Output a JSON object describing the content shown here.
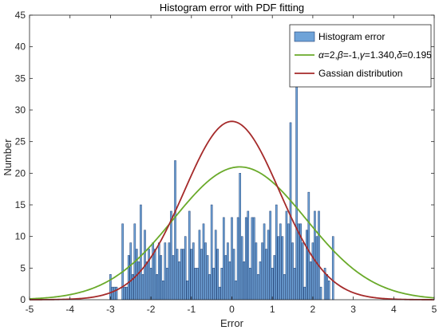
{
  "chart_data": {
    "type": "bar",
    "title": "Histogram error with PDF fitting",
    "xlabel": "Error",
    "ylabel": "Number",
    "xlim": [
      -5,
      5
    ],
    "ylim": [
      0,
      45
    ],
    "xticks": [
      -5,
      -4,
      -3,
      -2,
      -1,
      0,
      1,
      2,
      3,
      4,
      5
    ],
    "yticks": [
      0,
      5,
      10,
      15,
      20,
      25,
      30,
      35,
      40,
      45
    ],
    "grid": false,
    "legend_position": "top-right",
    "histogram": {
      "name": "Histogram error",
      "color": "#6fa3d8",
      "edge_color": "#1f3f73",
      "bin_width": 0.05,
      "x": [
        -3.0,
        -2.95,
        -2.9,
        -2.85,
        -2.8,
        -2.75,
        -2.7,
        -2.65,
        -2.6,
        -2.55,
        -2.5,
        -2.45,
        -2.4,
        -2.35,
        -2.3,
        -2.25,
        -2.2,
        -2.15,
        -2.1,
        -2.05,
        -2.0,
        -1.95,
        -1.9,
        -1.85,
        -1.8,
        -1.75,
        -1.7,
        -1.65,
        -1.6,
        -1.55,
        -1.5,
        -1.45,
        -1.4,
        -1.35,
        -1.3,
        -1.25,
        -1.2,
        -1.15,
        -1.1,
        -1.05,
        -1.0,
        -0.95,
        -0.9,
        -0.85,
        -0.8,
        -0.75,
        -0.7,
        -0.65,
        -0.6,
        -0.55,
        -0.5,
        -0.45,
        -0.4,
        -0.35,
        -0.3,
        -0.25,
        -0.2,
        -0.15,
        -0.1,
        -0.05,
        0.0,
        0.05,
        0.1,
        0.15,
        0.2,
        0.25,
        0.3,
        0.35,
        0.4,
        0.45,
        0.5,
        0.55,
        0.6,
        0.65,
        0.7,
        0.75,
        0.8,
        0.85,
        0.9,
        0.95,
        1.0,
        1.05,
        1.1,
        1.15,
        1.2,
        1.25,
        1.3,
        1.35,
        1.4,
        1.45,
        1.5,
        1.55,
        1.6,
        1.65,
        1.7,
        1.75,
        1.8,
        1.85,
        1.9,
        1.95,
        2.0,
        2.05,
        2.1,
        2.15,
        2.2,
        2.25,
        2.3,
        2.35,
        2.4,
        2.45,
        2.5
      ],
      "values": [
        4,
        2,
        2,
        2,
        0,
        0,
        12,
        2,
        2,
        7,
        9,
        4,
        12,
        8,
        6,
        15,
        4,
        11,
        6,
        8,
        5,
        9,
        8,
        4,
        9,
        7,
        3,
        9,
        5,
        9,
        14,
        7,
        22,
        8,
        6,
        8,
        8,
        10,
        3,
        14,
        8,
        9,
        5,
        5,
        11,
        8,
        12,
        9,
        7,
        4,
        15,
        5,
        11,
        8,
        2,
        5,
        13,
        7,
        9,
        6,
        13,
        8,
        3,
        13,
        20,
        10,
        6,
        13,
        14,
        5,
        13,
        13,
        9,
        4,
        6,
        9,
        12,
        8,
        11,
        14,
        5,
        7,
        15,
        10,
        12,
        10,
        4,
        14,
        12,
        28,
        9,
        5,
        40,
        12,
        12,
        9,
        2,
        11,
        17,
        6,
        9,
        14,
        10,
        14,
        2,
        0,
        5,
        4,
        3,
        0,
        10
      ]
    },
    "series": [
      {
        "name": "α=2,β=-1,γ=1.340,δ=0.195",
        "legend_parts": [
          {
            "text": "α",
            "italic": true
          },
          {
            "text": "=2,",
            "italic": false
          },
          {
            "text": "β",
            "italic": true
          },
          {
            "text": "=-1,",
            "italic": false
          },
          {
            "text": "γ",
            "italic": true
          },
          {
            "text": "=1.340,",
            "italic": false
          },
          {
            "text": "δ",
            "italic": true
          },
          {
            "text": "=0.195",
            "italic": false
          }
        ],
        "type": "line",
        "color": "#6aaa2a",
        "peak": 21,
        "center": 0.195,
        "sd": 1.64
      },
      {
        "name": "Gassian distribution",
        "type": "line",
        "color": "#a52a2a",
        "peak": 28.2,
        "center": 0,
        "sd": 1.18
      }
    ]
  }
}
